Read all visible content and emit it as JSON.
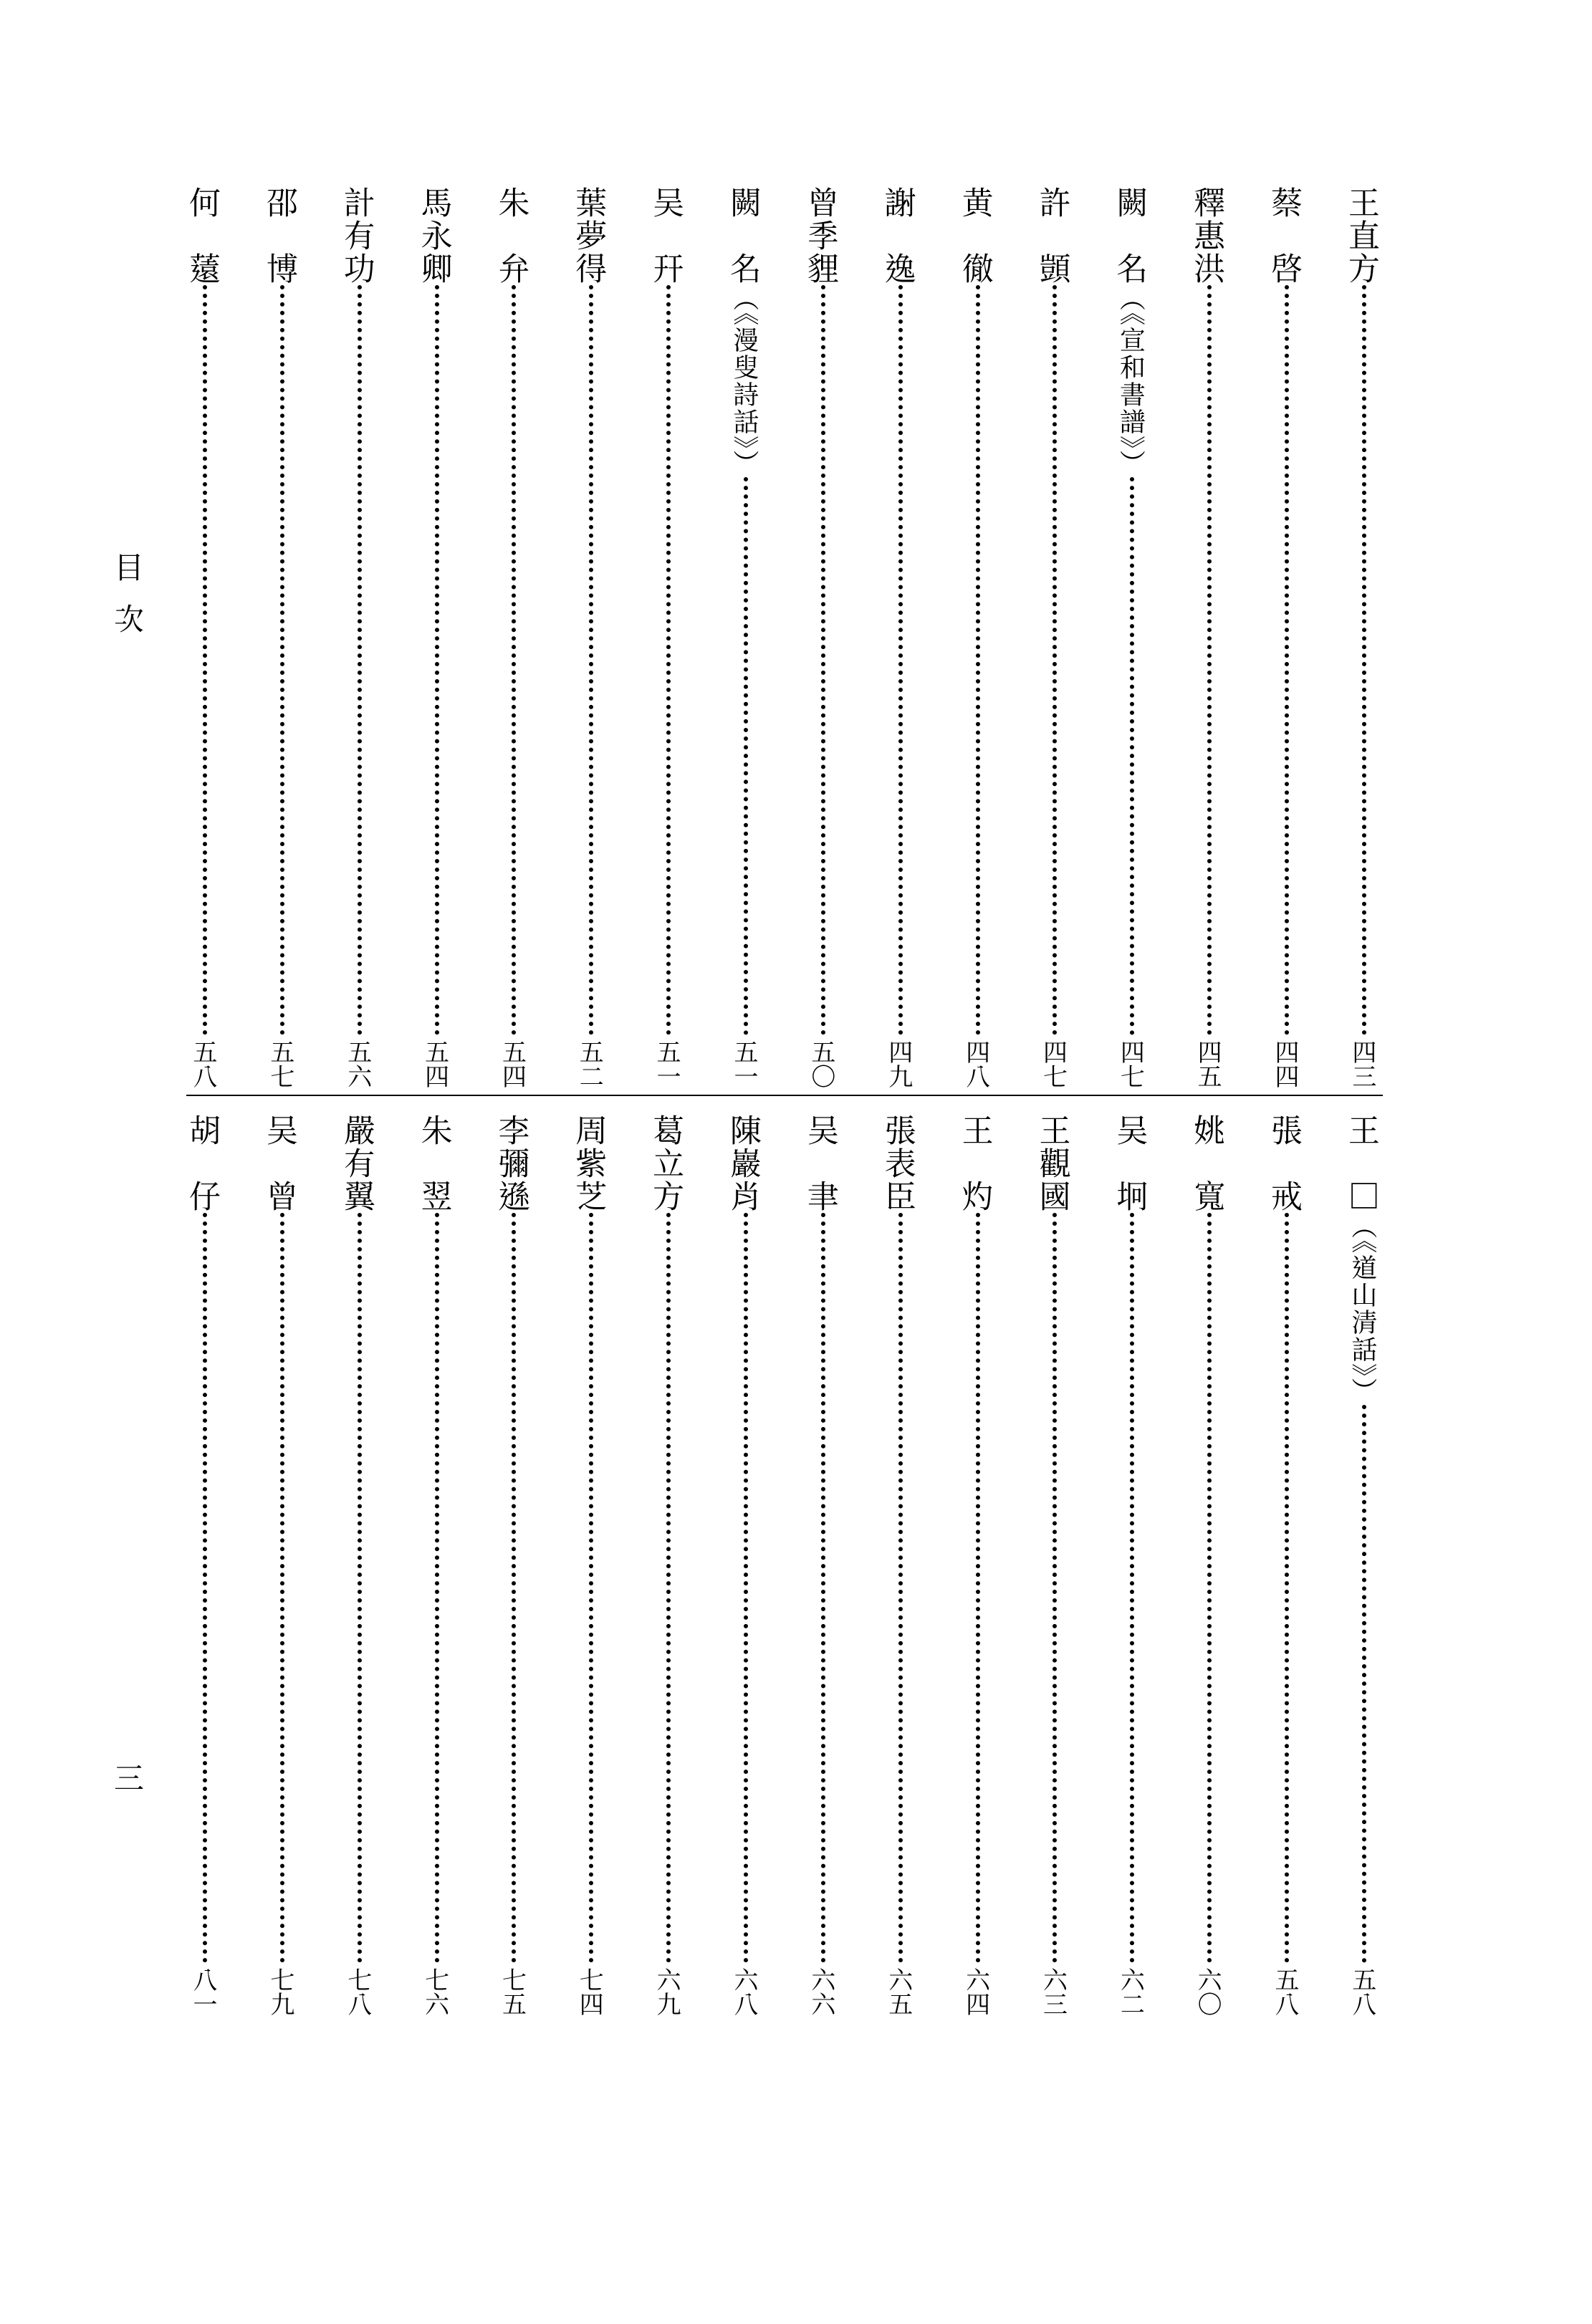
{
  "side_label_top": "目次",
  "side_label_bottom": "三",
  "upper_entries": [
    {
      "name": "王直方",
      "note": "",
      "page": "四三"
    },
    {
      "name": "蔡　啓",
      "note": "",
      "page": "四四"
    },
    {
      "name": "釋惠洪",
      "note": "",
      "page": "四五"
    },
    {
      "name": "闕　名",
      "note": "（《宣和書譜》）",
      "page": "四七"
    },
    {
      "name": "許　顗",
      "note": "",
      "page": "四七"
    },
    {
      "name": "黄　徹",
      "note": "",
      "page": "四八"
    },
    {
      "name": "謝　逸",
      "note": "",
      "page": "四九"
    },
    {
      "name": "曾季貍",
      "note": "",
      "page": "五〇"
    },
    {
      "name": "闕　名",
      "note": "（《漫叟詩話》）",
      "page": "五一"
    },
    {
      "name": "吴　幵",
      "note": "",
      "page": "五一"
    },
    {
      "name": "葉夢得",
      "note": "",
      "page": "五二"
    },
    {
      "name": "朱　弁",
      "note": "",
      "page": "五四"
    },
    {
      "name": "馬永卿",
      "note": "",
      "page": "五四"
    },
    {
      "name": "計有功",
      "note": "",
      "page": "五六"
    },
    {
      "name": "邵　博",
      "note": "",
      "page": "五七"
    },
    {
      "name": "何　薳",
      "note": "",
      "page": "五八"
    }
  ],
  "lower_entries": [
    {
      "name": "王　□",
      "note": "（《道山清話》）",
      "page": "五八"
    },
    {
      "name": "張　戒",
      "note": "",
      "page": "五八"
    },
    {
      "name": "姚　寬",
      "note": "",
      "page": "六〇"
    },
    {
      "name": "吴　坰",
      "note": "",
      "page": "六二"
    },
    {
      "name": "王觀國",
      "note": "",
      "page": "六三"
    },
    {
      "name": "王　灼",
      "note": "",
      "page": "六四"
    },
    {
      "name": "張表臣",
      "note": "",
      "page": "六五"
    },
    {
      "name": "吴　聿",
      "note": "",
      "page": "六六"
    },
    {
      "name": "陳巖肖",
      "note": "",
      "page": "六八"
    },
    {
      "name": "葛立方",
      "note": "",
      "page": "六九"
    },
    {
      "name": "周紫芝",
      "note": "",
      "page": "七四"
    },
    {
      "name": "李彌遜",
      "note": "",
      "page": "七五"
    },
    {
      "name": "朱　翌",
      "note": "",
      "page": "七六"
    },
    {
      "name": "嚴有翼",
      "note": "",
      "page": "七八"
    },
    {
      "name": "吴　曾",
      "note": "",
      "page": "七九"
    },
    {
      "name": "胡　仔",
      "note": "",
      "page": "八一"
    }
  ]
}
